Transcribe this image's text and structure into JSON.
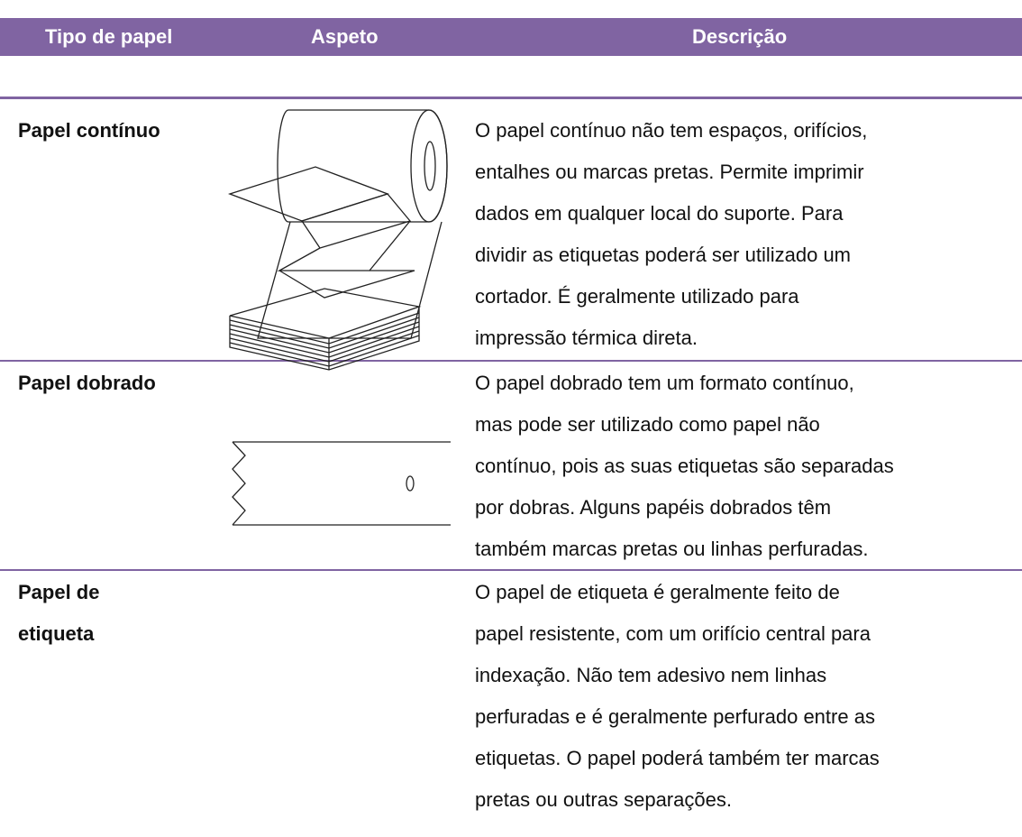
{
  "header": {
    "columns": [
      "Tipo de papel",
      "Aspeto",
      "Descrição"
    ]
  },
  "rows": [
    {
      "type": "Papel contínuo",
      "description": [
        "O papel contínuo não tem espaços, orifícios,",
        "entalhes ou marcas pretas. Permite imprimir",
        "dados em qualquer local do suporte. Para",
        "dividir as etiquetas poderá ser utilizado um",
        "cortador. É geralmente utilizado para",
        "impressão térmica direta."
      ]
    },
    {
      "type": "Papel dobrado",
      "description": [
        "O papel dobrado tem um formato contínuo,",
        "mas pode ser utilizado como papel não",
        "contínuo, pois as suas etiquetas são separadas",
        "por dobras. Alguns papéis dobrados têm",
        "também marcas pretas ou linhas perfuradas."
      ]
    },
    {
      "type": [
        "Papel de",
        "etiqueta"
      ],
      "description": [
        "O papel de etiqueta é geralmente feito de",
        "papel resistente, com um orifício central para",
        "indexação. Não tem adesivo nem linhas",
        "perfuradas e é geralmente perfurado entre as",
        "etiquetas. O papel poderá também ter marcas",
        "pretas ou outras separações."
      ]
    }
  ]
}
